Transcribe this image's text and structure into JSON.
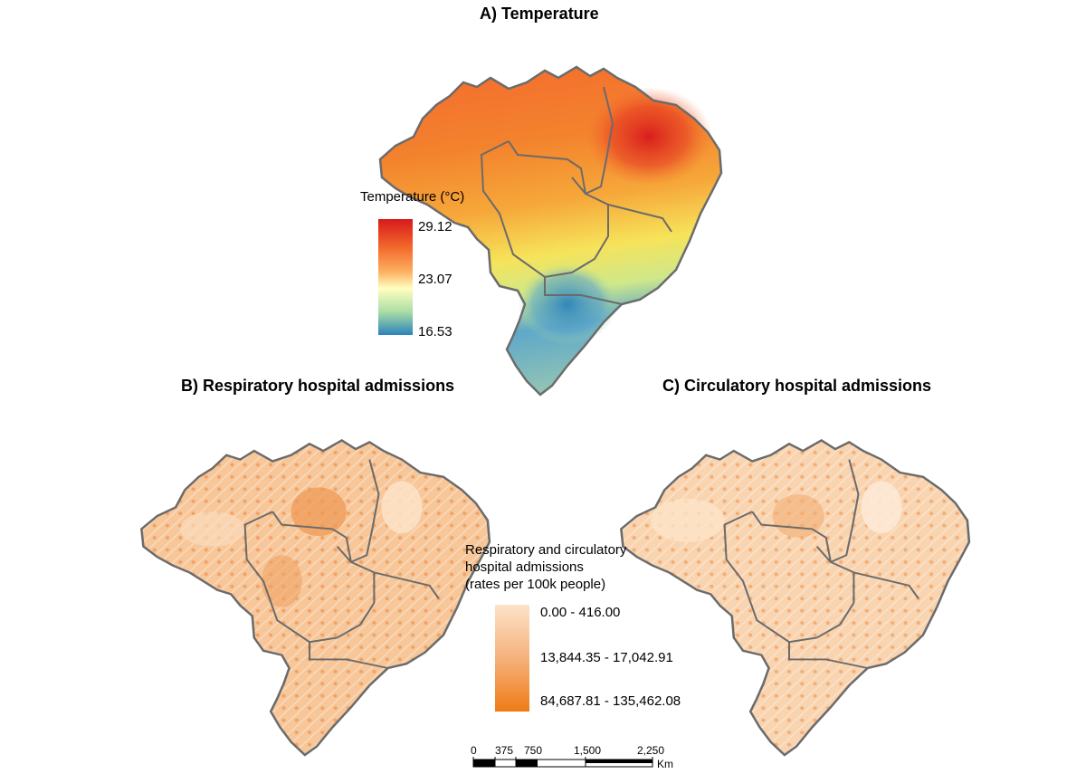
{
  "panels": {
    "temperature": {
      "title": "A) Temperature"
    },
    "respiratory": {
      "title": "B) Respiratory hospital admissions"
    },
    "circulatory": {
      "title": "C) Circulatory hospital admissions"
    }
  },
  "temperature_legend": {
    "title": "Temperature (°C)",
    "max": "29.12",
    "mid": "23.07",
    "min": "16.53",
    "colors": [
      "#d7191c",
      "#f36b2c",
      "#fdae61",
      "#ffffbf",
      "#abdda4",
      "#2b83ba"
    ]
  },
  "admissions_legend": {
    "title_line1": "Respiratory and circulatory",
    "title_line2": "hospital admissions",
    "title_line3": "(rates per 100k people)",
    "class_low": "0.00 - 416.00",
    "class_mid": "13,844.35 - 17,042.91",
    "class_high": "84,687.81 - 135,462.08",
    "colors": [
      "#fde3c8",
      "#f5b27c",
      "#ef7b16"
    ]
  },
  "scale_bar": {
    "ticks": [
      "0",
      "375",
      "750",
      "1,500",
      "2,250"
    ],
    "unit": "Km"
  }
}
